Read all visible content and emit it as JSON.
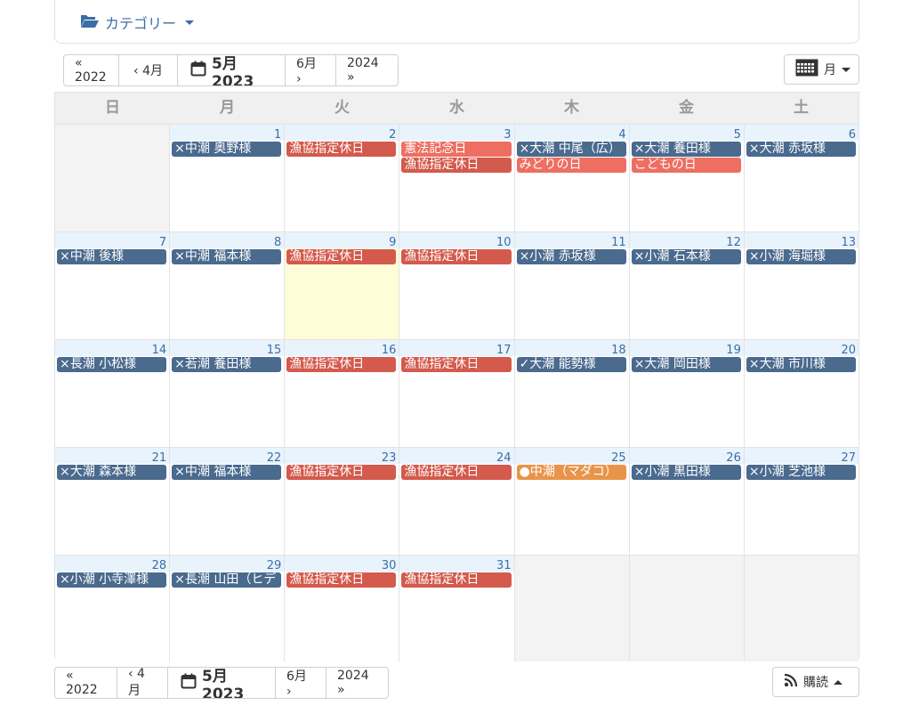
{
  "category": {
    "label": "カテゴリー"
  },
  "nav_top": {
    "prev_year": "« 2022",
    "prev_month": "‹ 4月",
    "current": "5月 2023",
    "next_month": "6月 ›",
    "next_year": "2024 »"
  },
  "nav_bottom": {
    "prev_year": "« 2022",
    "prev_month": "‹ 4月",
    "current": "5月 2023",
    "next_month": "6月 ›",
    "next_year": "2024 »"
  },
  "view": {
    "label": "月"
  },
  "subscribe": {
    "label": "購読"
  },
  "colors": {
    "blue": "#4a6a8e",
    "red": "#d35a4c",
    "salmon": "#ee6f62",
    "orange": "#e8944a",
    "today": "#fdfdd7",
    "link": "#3a6ea5"
  },
  "calendar": {
    "weekdays": [
      "日",
      "月",
      "火",
      "水",
      "木",
      "金",
      "土"
    ],
    "weeks": [
      [
        {
          "day": "",
          "empty": true,
          "events": []
        },
        {
          "day": "1",
          "events": [
            {
              "label": "×中潮 奥野様",
              "color": "#4a6a8e"
            }
          ]
        },
        {
          "day": "2",
          "events": [
            {
              "label": "漁協指定休日",
              "color": "#d35a4c"
            }
          ]
        },
        {
          "day": "3",
          "events": [
            {
              "label": "憲法記念日",
              "color": "#ee6f62"
            },
            {
              "label": "漁協指定休日",
              "color": "#d35a4c"
            }
          ]
        },
        {
          "day": "4",
          "events": [
            {
              "label": "×大潮 中尾（広）",
              "color": "#4a6a8e"
            },
            {
              "label": "みどりの日",
              "color": "#ee6f62"
            }
          ]
        },
        {
          "day": "5",
          "events": [
            {
              "label": "×大潮 養田様",
              "color": "#4a6a8e"
            },
            {
              "label": "こどもの日",
              "color": "#ee6f62"
            }
          ]
        },
        {
          "day": "6",
          "events": [
            {
              "label": "×大潮 赤坂様",
              "color": "#4a6a8e"
            }
          ]
        }
      ],
      [
        {
          "day": "7",
          "events": [
            {
              "label": "×中潮 後様",
              "color": "#4a6a8e"
            }
          ]
        },
        {
          "day": "8",
          "events": [
            {
              "label": "×中潮 福本様",
              "color": "#4a6a8e"
            }
          ]
        },
        {
          "day": "9",
          "today": true,
          "events": [
            {
              "label": "漁協指定休日",
              "color": "#d35a4c"
            }
          ]
        },
        {
          "day": "10",
          "events": [
            {
              "label": "漁協指定休日",
              "color": "#d35a4c"
            }
          ]
        },
        {
          "day": "11",
          "events": [
            {
              "label": "×小潮 赤坂様",
              "color": "#4a6a8e"
            }
          ]
        },
        {
          "day": "12",
          "events": [
            {
              "label": "×小潮 石本様",
              "color": "#4a6a8e"
            }
          ]
        },
        {
          "day": "13",
          "events": [
            {
              "label": "×小潮 海堀様",
              "color": "#4a6a8e"
            }
          ]
        }
      ],
      [
        {
          "day": "14",
          "events": [
            {
              "label": "×長潮 小松様",
              "color": "#4a6a8e"
            }
          ]
        },
        {
          "day": "15",
          "events": [
            {
              "label": "×若潮 養田様",
              "color": "#4a6a8e"
            }
          ]
        },
        {
          "day": "16",
          "events": [
            {
              "label": "漁協指定休日",
              "color": "#d35a4c"
            }
          ]
        },
        {
          "day": "17",
          "events": [
            {
              "label": "漁協指定休日",
              "color": "#d35a4c"
            }
          ]
        },
        {
          "day": "18",
          "events": [
            {
              "label": "✓大潮 能勢様",
              "color": "#4a6a8e"
            }
          ]
        },
        {
          "day": "19",
          "events": [
            {
              "label": "×大潮 岡田様",
              "color": "#4a6a8e"
            }
          ]
        },
        {
          "day": "20",
          "events": [
            {
              "label": "×大潮 市川様",
              "color": "#4a6a8e"
            }
          ]
        }
      ],
      [
        {
          "day": "21",
          "events": [
            {
              "label": "×大潮 森本様",
              "color": "#4a6a8e"
            }
          ]
        },
        {
          "day": "22",
          "events": [
            {
              "label": "×中潮 福本様",
              "color": "#4a6a8e"
            }
          ]
        },
        {
          "day": "23",
          "events": [
            {
              "label": "漁協指定休日",
              "color": "#d35a4c"
            }
          ]
        },
        {
          "day": "24",
          "events": [
            {
              "label": "漁協指定休日",
              "color": "#d35a4c"
            }
          ]
        },
        {
          "day": "25",
          "events": [
            {
              "label": "●中潮（マダコ）",
              "color": "#e8944a"
            }
          ]
        },
        {
          "day": "26",
          "events": [
            {
              "label": "×小潮 黒田様",
              "color": "#4a6a8e"
            }
          ]
        },
        {
          "day": "27",
          "events": [
            {
              "label": "×小潮 芝池様",
              "color": "#4a6a8e"
            }
          ]
        }
      ],
      [
        {
          "day": "28",
          "events": [
            {
              "label": "×小潮 小寺澤様",
              "color": "#4a6a8e"
            }
          ]
        },
        {
          "day": "29",
          "events": [
            {
              "label": "×長潮 山田（ヒデ",
              "color": "#4a6a8e"
            }
          ]
        },
        {
          "day": "30",
          "events": [
            {
              "label": "漁協指定休日",
              "color": "#d35a4c"
            }
          ]
        },
        {
          "day": "31",
          "events": [
            {
              "label": "漁協指定休日",
              "color": "#d35a4c"
            }
          ]
        },
        {
          "day": "",
          "empty": true,
          "events": []
        },
        {
          "day": "",
          "empty": true,
          "events": []
        },
        {
          "day": "",
          "empty": true,
          "events": []
        }
      ]
    ]
  }
}
